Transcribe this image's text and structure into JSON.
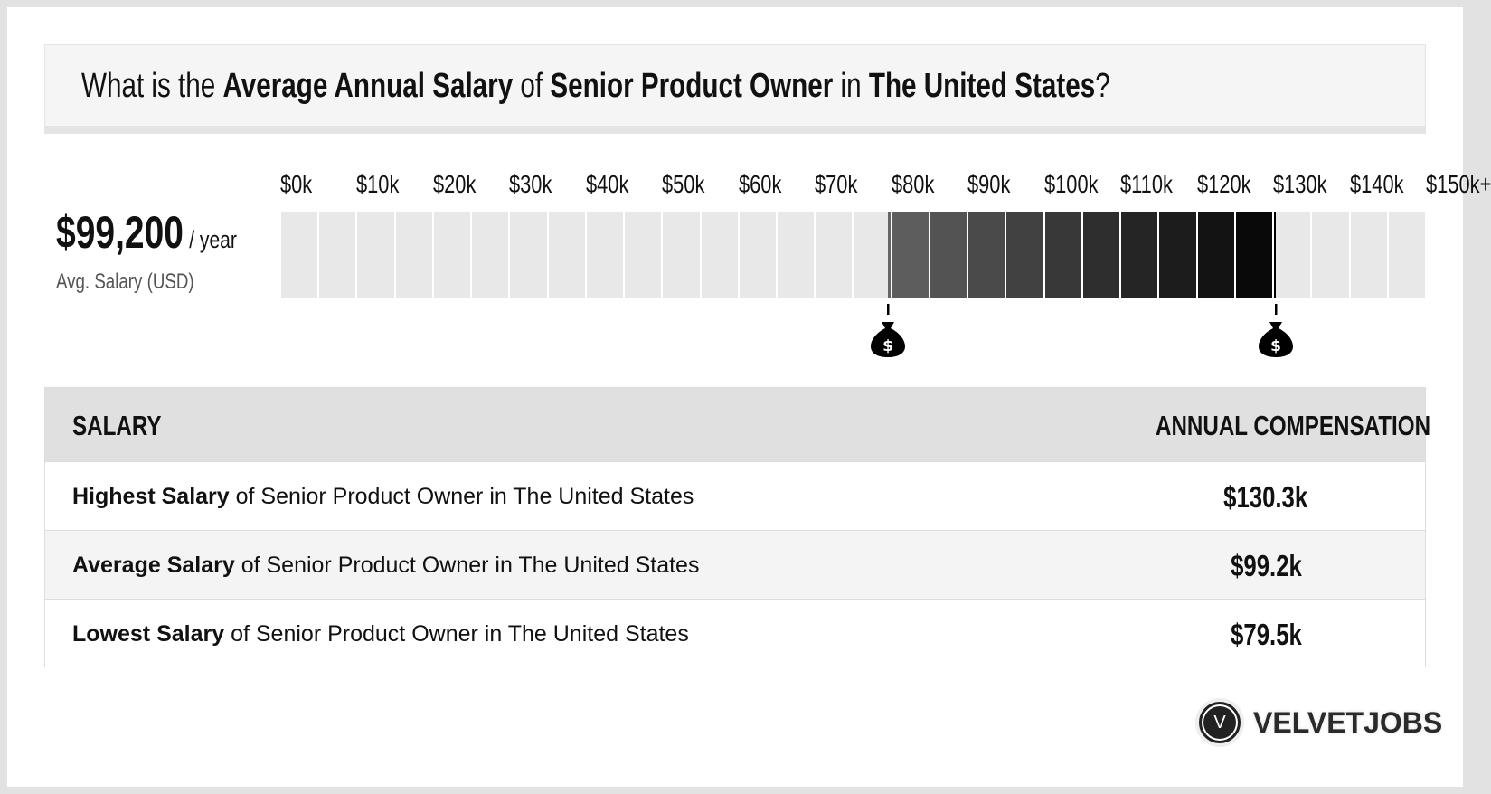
{
  "title": {
    "p1": "What is the ",
    "b1": "Average Annual Salary",
    "p2": " of ",
    "b2": "Senior Product Owner",
    "p3": " in ",
    "b3": "The United States",
    "p4": "?"
  },
  "summary": {
    "value": "$99,200",
    "unit": "/ year",
    "label": "Avg. Salary (USD)"
  },
  "chart_data": {
    "type": "range-bar",
    "tick_labels": [
      "$0k",
      "$10k",
      "$20k",
      "$30k",
      "$40k",
      "$50k",
      "$60k",
      "$70k",
      "$80k",
      "$90k",
      "$100k",
      "$110k",
      "$120k",
      "$130k",
      "$140k",
      "$150k+"
    ],
    "xlim": [
      0,
      150
    ],
    "segment_step": 5,
    "low": 79.5,
    "average": 99.2,
    "high": 130.3,
    "colors": {
      "empty": "#e8e8e8",
      "range_start": "#666666",
      "range_end": "#000000"
    },
    "markers": [
      "money-bag-icon",
      "money-bag-icon"
    ]
  },
  "table": {
    "headers": [
      "SALARY",
      "ANNUAL COMPENSATION"
    ],
    "rows": [
      {
        "bold": "Highest Salary",
        "text": " of Senior Product Owner in The United States",
        "value": "$130.3k"
      },
      {
        "bold": "Average Salary",
        "text": " of Senior Product Owner in The United States",
        "value": "$99.2k"
      },
      {
        "bold": "Lowest Salary",
        "text": " of Senior Product Owner in The United States",
        "value": "$79.5k"
      }
    ]
  },
  "logo": {
    "mark": "V",
    "text": "VELVETJOBS"
  }
}
